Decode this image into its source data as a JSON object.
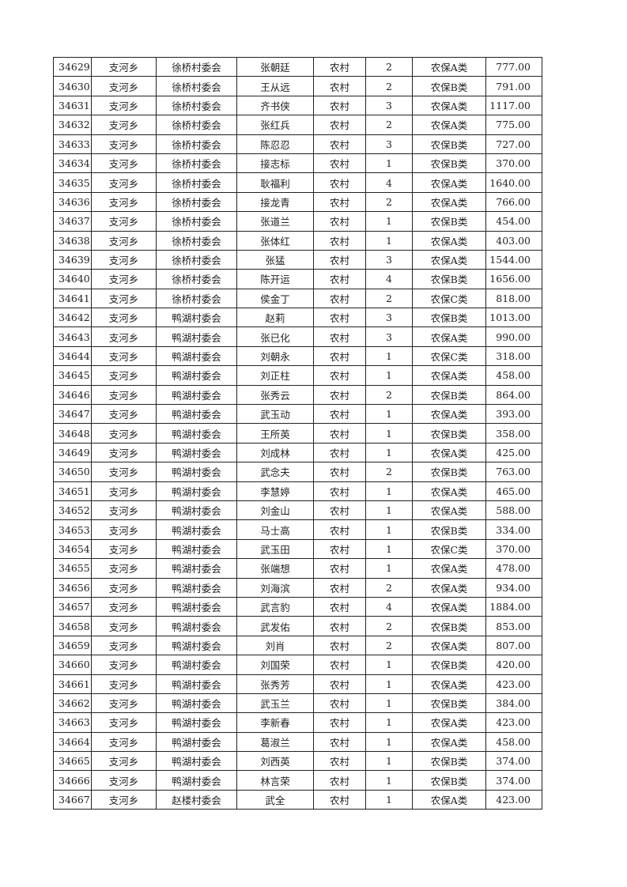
{
  "table": {
    "rows": [
      [
        "34629",
        "支河乡",
        "徐桥村委会",
        "张朝廷",
        "农村",
        "2",
        "农保A类",
        "777.00"
      ],
      [
        "34630",
        "支河乡",
        "徐桥村委会",
        "王从远",
        "农村",
        "2",
        "农保B类",
        "791.00"
      ],
      [
        "34631",
        "支河乡",
        "徐桥村委会",
        "齐书侠",
        "农村",
        "3",
        "农保A类",
        "1117.00"
      ],
      [
        "34632",
        "支河乡",
        "徐桥村委会",
        "张红兵",
        "农村",
        "2",
        "农保A类",
        "775.00"
      ],
      [
        "34633",
        "支河乡",
        "徐桥村委会",
        "陈忍忍",
        "农村",
        "3",
        "农保B类",
        "727.00"
      ],
      [
        "34634",
        "支河乡",
        "徐桥村委会",
        "接志标",
        "农村",
        "1",
        "农保B类",
        "370.00"
      ],
      [
        "34635",
        "支河乡",
        "徐桥村委会",
        "耿福利",
        "农村",
        "4",
        "农保A类",
        "1640.00"
      ],
      [
        "34636",
        "支河乡",
        "徐桥村委会",
        "接龙青",
        "农村",
        "2",
        "农保A类",
        "766.00"
      ],
      [
        "34637",
        "支河乡",
        "徐桥村委会",
        "张道兰",
        "农村",
        "1",
        "农保B类",
        "454.00"
      ],
      [
        "34638",
        "支河乡",
        "徐桥村委会",
        "张体红",
        "农村",
        "1",
        "农保A类",
        "403.00"
      ],
      [
        "34639",
        "支河乡",
        "徐桥村委会",
        "张猛",
        "农村",
        "3",
        "农保A类",
        "1544.00"
      ],
      [
        "34640",
        "支河乡",
        "徐桥村委会",
        "陈开运",
        "农村",
        "4",
        "农保B类",
        "1656.00"
      ],
      [
        "34641",
        "支河乡",
        "徐桥村委会",
        "侯金丁",
        "农村",
        "2",
        "农保C类",
        "818.00"
      ],
      [
        "34642",
        "支河乡",
        "鸭湖村委会",
        "赵莉",
        "农村",
        "3",
        "农保B类",
        "1013.00"
      ],
      [
        "34643",
        "支河乡",
        "鸭湖村委会",
        "张已化",
        "农村",
        "3",
        "农保A类",
        "990.00"
      ],
      [
        "34644",
        "支河乡",
        "鸭湖村委会",
        "刘朝永",
        "农村",
        "1",
        "农保C类",
        "318.00"
      ],
      [
        "34645",
        "支河乡",
        "鸭湖村委会",
        "刘正柱",
        "农村",
        "1",
        "农保A类",
        "458.00"
      ],
      [
        "34646",
        "支河乡",
        "鸭湖村委会",
        "张秀云",
        "农村",
        "2",
        "农保B类",
        "864.00"
      ],
      [
        "34647",
        "支河乡",
        "鸭湖村委会",
        "武玉动",
        "农村",
        "1",
        "农保A类",
        "393.00"
      ],
      [
        "34648",
        "支河乡",
        "鸭湖村委会",
        "王所英",
        "农村",
        "1",
        "农保B类",
        "358.00"
      ],
      [
        "34649",
        "支河乡",
        "鸭湖村委会",
        "刘成林",
        "农村",
        "1",
        "农保A类",
        "425.00"
      ],
      [
        "34650",
        "支河乡",
        "鸭湖村委会",
        "武念夫",
        "农村",
        "2",
        "农保B类",
        "763.00"
      ],
      [
        "34651",
        "支河乡",
        "鸭湖村委会",
        "李慧婷",
        "农村",
        "1",
        "农保A类",
        "465.00"
      ],
      [
        "34652",
        "支河乡",
        "鸭湖村委会",
        "刘金山",
        "农村",
        "1",
        "农保A类",
        "588.00"
      ],
      [
        "34653",
        "支河乡",
        "鸭湖村委会",
        "马士高",
        "农村",
        "1",
        "农保B类",
        "334.00"
      ],
      [
        "34654",
        "支河乡",
        "鸭湖村委会",
        "武玉田",
        "农村",
        "1",
        "农保C类",
        "370.00"
      ],
      [
        "34655",
        "支河乡",
        "鸭湖村委会",
        "张端想",
        "农村",
        "1",
        "农保A类",
        "478.00"
      ],
      [
        "34656",
        "支河乡",
        "鸭湖村委会",
        "刘海滨",
        "农村",
        "2",
        "农保A类",
        "934.00"
      ],
      [
        "34657",
        "支河乡",
        "鸭湖村委会",
        "武言豹",
        "农村",
        "4",
        "农保A类",
        "1884.00"
      ],
      [
        "34658",
        "支河乡",
        "鸭湖村委会",
        "武发佑",
        "农村",
        "2",
        "农保B类",
        "853.00"
      ],
      [
        "34659",
        "支河乡",
        "鸭湖村委会",
        "刘肖",
        "农村",
        "2",
        "农保A类",
        "807.00"
      ],
      [
        "34660",
        "支河乡",
        "鸭湖村委会",
        "刘国荣",
        "农村",
        "1",
        "农保B类",
        "420.00"
      ],
      [
        "34661",
        "支河乡",
        "鸭湖村委会",
        "张秀芳",
        "农村",
        "1",
        "农保A类",
        "423.00"
      ],
      [
        "34662",
        "支河乡",
        "鸭湖村委会",
        "武玉兰",
        "农村",
        "1",
        "农保B类",
        "384.00"
      ],
      [
        "34663",
        "支河乡",
        "鸭湖村委会",
        "李新春",
        "农村",
        "1",
        "农保A类",
        "423.00"
      ],
      [
        "34664",
        "支河乡",
        "鸭湖村委会",
        "葛淑兰",
        "农村",
        "1",
        "农保A类",
        "458.00"
      ],
      [
        "34665",
        "支河乡",
        "鸭湖村委会",
        "刘西英",
        "农村",
        "1",
        "农保B类",
        "374.00"
      ],
      [
        "34666",
        "支河乡",
        "鸭湖村委会",
        "林言荣",
        "农村",
        "1",
        "农保B类",
        "374.00"
      ],
      [
        "34667",
        "支河乡",
        "赵楼村委会",
        "武全",
        "农村",
        "1",
        "农保A类",
        "423.00"
      ]
    ]
  }
}
